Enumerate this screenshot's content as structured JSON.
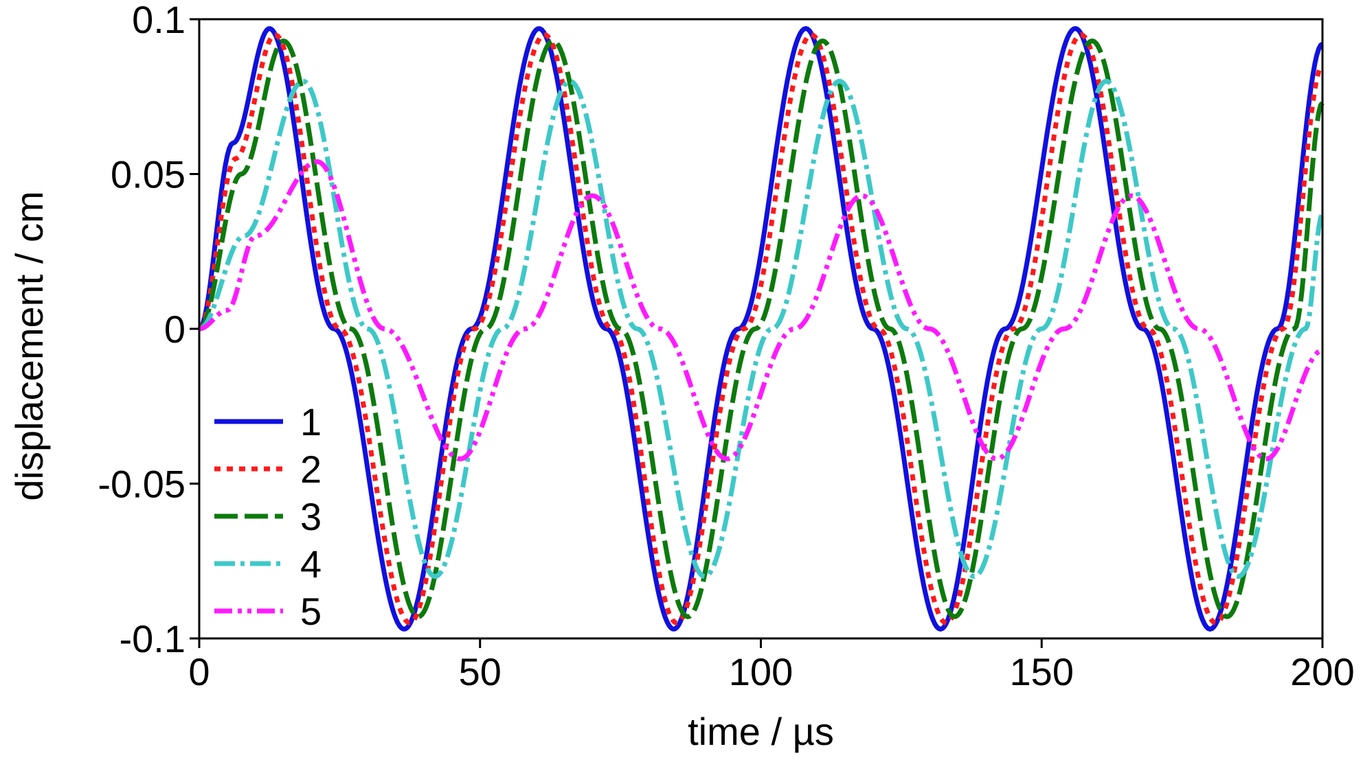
{
  "chart_data": {
    "type": "line",
    "xlabel": "time / µs",
    "ylabel": "displacement / cm",
    "xlim": [
      0,
      200
    ],
    "ylim": [
      -0.1,
      0.1
    ],
    "xticks": [
      0,
      50,
      100,
      150,
      200
    ],
    "xtick_labels": [
      "0",
      "50",
      "100",
      "150",
      "200"
    ],
    "yticks": [
      0.1,
      0.05,
      0,
      -0.05,
      -0.1
    ],
    "ytick_labels": [
      "0.1",
      "0.05",
      "0",
      "-0.05",
      "-0.1"
    ],
    "grid": false,
    "legend_position": "bottom-left",
    "series": [
      {
        "name": "1",
        "color": "#1010e0",
        "dash": "solid",
        "points": [
          [
            0,
            0
          ],
          [
            6,
            0.06
          ],
          [
            12.5,
            0.097
          ],
          [
            24,
            0.0
          ],
          [
            36.5,
            -0.097
          ],
          [
            48.5,
            0.0
          ],
          [
            60.5,
            0.097
          ],
          [
            72.5,
            0.0
          ],
          [
            84.5,
            -0.097
          ],
          [
            96,
            0.0
          ],
          [
            108,
            0.097
          ],
          [
            120,
            0.0
          ],
          [
            132,
            -0.097
          ],
          [
            143.5,
            0.0
          ],
          [
            156,
            0.097
          ],
          [
            168,
            0.0
          ],
          [
            180,
            -0.097
          ],
          [
            192,
            0.0
          ],
          [
            200,
            0.092
          ]
        ]
      },
      {
        "name": "2",
        "color": "#ff1a1a",
        "dash": "dotted",
        "points": [
          [
            0,
            0
          ],
          [
            6.5,
            0.055
          ],
          [
            13.5,
            0.095
          ],
          [
            25,
            0.0
          ],
          [
            37.5,
            -0.095
          ],
          [
            49,
            0.0
          ],
          [
            61.5,
            0.095
          ],
          [
            73.5,
            0.0
          ],
          [
            85,
            -0.095
          ],
          [
            97,
            0.0
          ],
          [
            109,
            0.095
          ],
          [
            121,
            0.0
          ],
          [
            133,
            -0.095
          ],
          [
            145,
            0.0
          ],
          [
            157,
            0.095
          ],
          [
            169,
            0.0
          ],
          [
            181,
            -0.095
          ],
          [
            193,
            0.0
          ],
          [
            200,
            0.085
          ]
        ]
      },
      {
        "name": "3",
        "color": "#0c7a0c",
        "dash": "dashed",
        "points": [
          [
            0,
            0
          ],
          [
            7.5,
            0.05
          ],
          [
            15,
            0.093
          ],
          [
            27,
            0.0
          ],
          [
            39,
            -0.093
          ],
          [
            51,
            0.0
          ],
          [
            63,
            0.093
          ],
          [
            75,
            0.0
          ],
          [
            87,
            -0.093
          ],
          [
            99,
            0.0
          ],
          [
            111,
            0.093
          ],
          [
            123,
            0.0
          ],
          [
            134.5,
            -0.093
          ],
          [
            146.5,
            0.0
          ],
          [
            159,
            0.093
          ],
          [
            171,
            0.0
          ],
          [
            183,
            -0.093
          ],
          [
            195,
            0.0
          ],
          [
            200,
            0.073
          ]
        ]
      },
      {
        "name": "4",
        "color": "#3ec8c8",
        "dash": "dashdot",
        "points": [
          [
            0,
            0
          ],
          [
            8,
            0.03
          ],
          [
            18.5,
            0.08
          ],
          [
            30,
            0.0
          ],
          [
            42,
            -0.08
          ],
          [
            54,
            0.0
          ],
          [
            66,
            0.08
          ],
          [
            78,
            0.0
          ],
          [
            90,
            -0.08
          ],
          [
            102,
            0.0
          ],
          [
            114,
            0.08
          ],
          [
            126,
            0.0
          ],
          [
            138,
            -0.08
          ],
          [
            150,
            0.0
          ],
          [
            161.5,
            0.08
          ],
          [
            173.5,
            0.0
          ],
          [
            185,
            -0.08
          ],
          [
            197,
            0.0
          ],
          [
            200,
            0.037
          ]
        ]
      },
      {
        "name": "5",
        "color": "#ff1aff",
        "dash": "dashdotdot",
        "points": [
          [
            0,
            0
          ],
          [
            5,
            0.006
          ],
          [
            10,
            0.03
          ],
          [
            21,
            0.054
          ],
          [
            33,
            0.0
          ],
          [
            46.5,
            -0.042
          ],
          [
            58,
            0.0
          ],
          [
            70,
            0.043
          ],
          [
            82,
            0.0
          ],
          [
            94,
            -0.042
          ],
          [
            106,
            0.0
          ],
          [
            118,
            0.043
          ],
          [
            130,
            0.0
          ],
          [
            142,
            -0.042
          ],
          [
            154,
            0.0
          ],
          [
            166,
            0.043
          ],
          [
            178,
            0.0
          ],
          [
            190,
            -0.042
          ],
          [
            200,
            -0.007
          ]
        ]
      }
    ]
  }
}
